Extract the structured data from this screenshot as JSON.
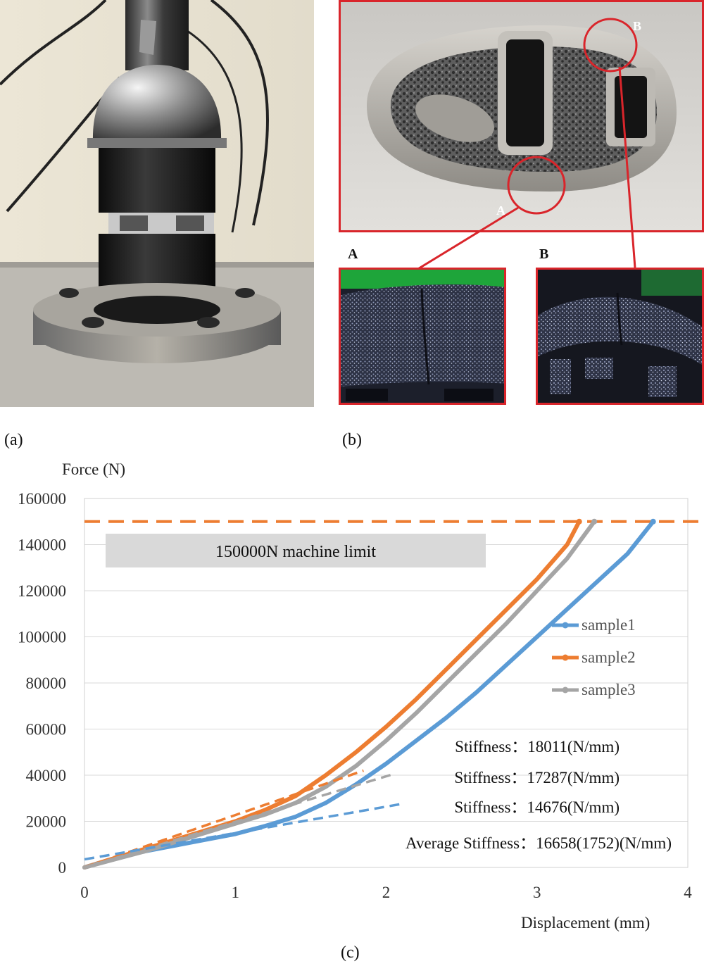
{
  "panels": {
    "a_label": "(a)",
    "b_label": "(b)",
    "c_label": "(c)"
  },
  "photo_b": {
    "circle_a_label": "A",
    "circle_b_label": "B",
    "inset_a_label": "A",
    "inset_b_label": "B"
  },
  "colors": {
    "sample1": "#5b9bd5",
    "sample2": "#ed7d31",
    "sample3": "#a5a5a5",
    "annotation_red": "#d9252b",
    "limit_box": "#d9d9d9"
  },
  "chart_data": {
    "type": "line",
    "ylabel": "Force (N)",
    "xlabel": "Displacement (mm)",
    "xlim": [
      0,
      4
    ],
    "ylim": [
      0,
      160000
    ],
    "x_ticks": [
      0,
      1,
      2,
      3,
      4
    ],
    "y_ticks": [
      0,
      20000,
      40000,
      60000,
      80000,
      100000,
      120000,
      140000,
      160000
    ],
    "grid": "horizontal",
    "legend_position": "right",
    "series": [
      {
        "name": "sample1",
        "color": "#5b9bd5",
        "x": [
          0,
          0.2,
          0.4,
          0.6,
          0.8,
          1.0,
          1.2,
          1.4,
          1.6,
          1.8,
          2.0,
          2.2,
          2.4,
          2.6,
          2.8,
          3.0,
          3.2,
          3.4,
          3.6,
          3.77
        ],
        "y": [
          0,
          4000,
          7000,
          9500,
          12000,
          14500,
          18000,
          22000,
          28000,
          36000,
          45000,
          55000,
          65000,
          76000,
          88000,
          100000,
          112000,
          124000,
          136000,
          150000
        ]
      },
      {
        "name": "sample2",
        "color": "#ed7d31",
        "x": [
          0,
          0.2,
          0.4,
          0.6,
          0.8,
          1.0,
          1.2,
          1.4,
          1.6,
          1.8,
          2.0,
          2.2,
          2.4,
          2.6,
          2.8,
          3.0,
          3.2,
          3.28
        ],
        "y": [
          0,
          4000,
          8000,
          12000,
          16000,
          20000,
          25000,
          31000,
          40000,
          50000,
          61000,
          73000,
          86000,
          99000,
          112000,
          125000,
          140000,
          150000
        ]
      },
      {
        "name": "sample3",
        "color": "#a5a5a5",
        "x": [
          0,
          0.2,
          0.4,
          0.6,
          0.8,
          1.0,
          1.2,
          1.4,
          1.6,
          1.8,
          2.0,
          2.2,
          2.4,
          2.6,
          2.8,
          3.0,
          3.2,
          3.38
        ],
        "y": [
          0,
          3500,
          7000,
          11000,
          15000,
          19000,
          23000,
          28000,
          35000,
          44000,
          55000,
          67000,
          80000,
          93000,
          106000,
          120000,
          134000,
          150000
        ]
      }
    ],
    "fit_lines": [
      {
        "series": "sample2",
        "color": "#ed7d31",
        "x": [
          0,
          1.85
        ],
        "y": [
          0,
          42000
        ]
      },
      {
        "series": "sample3",
        "color": "#a5a5a5",
        "x": [
          0,
          2.05
        ],
        "y": [
          0,
          40500
        ]
      },
      {
        "series": "sample1",
        "color": "#5b9bd5",
        "x": [
          0,
          2.1
        ],
        "y": [
          3500,
          27500
        ]
      }
    ],
    "limit_line": {
      "y": 150000,
      "color": "#ed7d31",
      "label": "150000N machine limit"
    },
    "annotations": [
      "Stiffness：18011(N/mm)",
      "Stiffness：17287(N/mm)",
      "Stiffness：14676(N/mm)",
      "Average Stiffness：16658(1752)(N/mm)"
    ]
  }
}
